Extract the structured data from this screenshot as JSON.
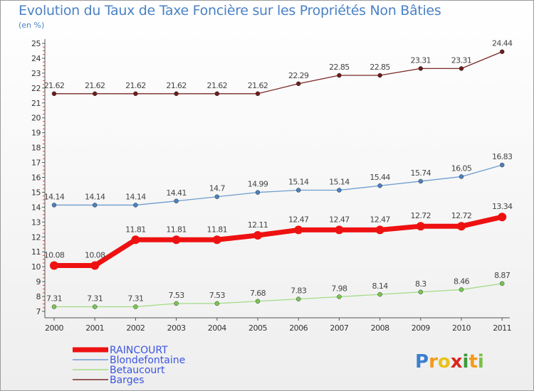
{
  "chart_data": {
    "type": "line",
    "title": "Evolution du Taux de Taxe Foncière sur les Propriétés Non Bâties",
    "unit_label": "(en %)",
    "x": [
      "2000",
      "2001",
      "2002",
      "2003",
      "2004",
      "2005",
      "2006",
      "2007",
      "2008",
      "2009",
      "2010",
      "2011"
    ],
    "ylim": [
      7,
      25
    ],
    "yticks": [
      7,
      8,
      9,
      10,
      11,
      12,
      13,
      14,
      15,
      16,
      17,
      18,
      19,
      20,
      21,
      22,
      23,
      24,
      25
    ],
    "series": [
      {
        "name": "Barges",
        "color": "#7a2828",
        "marker": "#6e1c1c",
        "width": 1.3,
        "values": [
          21.62,
          21.62,
          21.62,
          21.62,
          21.62,
          21.62,
          22.29,
          22.85,
          22.85,
          23.31,
          23.31,
          24.44
        ],
        "labels": [
          "21.62",
          "21.62",
          "21.62",
          "21.62",
          "21.62",
          "21.62",
          "22.29",
          "22.85",
          "22.85",
          "23.31",
          "23.31",
          "24.44"
        ]
      },
      {
        "name": "Blondefontaine",
        "color": "#6e9ccf",
        "marker": "#4a80c0",
        "width": 1.3,
        "values": [
          14.14,
          14.14,
          14.14,
          14.41,
          14.7,
          14.99,
          15.14,
          15.14,
          15.44,
          15.74,
          16.05,
          16.83
        ],
        "labels": [
          "14.14",
          "14.14",
          "14.14",
          "14.41",
          "14.7",
          "14.99",
          "15.14",
          "15.14",
          "15.44",
          "15.74",
          "16.05",
          "16.83"
        ]
      },
      {
        "name": "RAINCOURT",
        "color": "#ee1111",
        "marker": "#ee1111",
        "width": 7,
        "values": [
          10.08,
          10.08,
          11.81,
          11.81,
          11.81,
          12.11,
          12.47,
          12.47,
          12.47,
          12.72,
          12.72,
          13.34
        ],
        "labels": [
          "10.08",
          "10.08",
          "11.81",
          "11.81",
          "11.81",
          "12.11",
          "12.47",
          "12.47",
          "12.47",
          "12.72",
          "12.72",
          "13.34"
        ]
      },
      {
        "name": "Betaucourt",
        "color": "#a2dc84",
        "marker": "#78c850",
        "width": 1.3,
        "values": [
          7.31,
          7.31,
          7.31,
          7.53,
          7.53,
          7.68,
          7.83,
          7.98,
          8.14,
          8.3,
          8.46,
          8.87
        ],
        "labels": [
          "7.31",
          "7.31",
          "7.31",
          "7.53",
          "7.53",
          "7.68",
          "7.83",
          "7.98",
          "8.14",
          "8.3",
          "8.46",
          "8.87"
        ]
      }
    ],
    "legend": [
      {
        "name": "RAINCOURT",
        "color": "#ee1111",
        "thick": true
      },
      {
        "name": "Blondefontaine",
        "color": "#6e9ccf",
        "thick": false
      },
      {
        "name": "Betaucourt",
        "color": "#a2dc84",
        "thick": false
      },
      {
        "name": "Barges",
        "color": "#7a2828",
        "thick": false
      }
    ]
  },
  "logo": {
    "letters": [
      "P",
      "r",
      "o",
      "x",
      "i",
      "t",
      "i"
    ],
    "colors": [
      "#3a7fd0",
      "#f29b1c",
      "#e8c21a",
      "#d9261c",
      "#3a9a3a",
      "#f29b1c",
      "#7ac043"
    ]
  }
}
